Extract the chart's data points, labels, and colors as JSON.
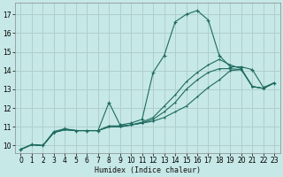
{
  "xlabel": "Humidex (Indice chaleur)",
  "bg_color": "#c6e8e6",
  "grid_color": "#aecfcd",
  "line_color": "#1e6b60",
  "xlim": [
    -0.5,
    23.5
  ],
  "ylim": [
    9.6,
    17.6
  ],
  "yticks": [
    10,
    11,
    12,
    13,
    14,
    15,
    16,
    17
  ],
  "xticks": [
    0,
    1,
    2,
    3,
    4,
    5,
    6,
    7,
    8,
    9,
    10,
    11,
    12,
    13,
    14,
    15,
    16,
    17,
    18,
    19,
    20,
    21,
    22,
    23
  ],
  "series1_x": [
    0,
    1,
    2,
    3,
    4,
    5,
    6,
    7,
    8,
    9,
    10,
    11,
    12,
    13,
    14,
    15,
    16,
    17,
    18,
    19,
    20,
    21,
    22,
    23
  ],
  "series1_y": [
    9.8,
    10.05,
    10.0,
    10.75,
    10.9,
    10.8,
    10.8,
    10.8,
    12.3,
    11.1,
    11.2,
    11.4,
    13.9,
    14.8,
    16.6,
    17.0,
    17.2,
    16.7,
    14.8,
    14.2,
    14.2,
    14.05,
    13.1,
    13.35
  ],
  "series2_x": [
    0,
    1,
    2,
    3,
    4,
    5,
    6,
    7,
    8,
    9,
    10,
    11,
    12,
    13,
    14,
    15,
    16,
    17,
    18,
    19,
    20,
    21,
    22,
    23
  ],
  "series2_y": [
    9.8,
    10.05,
    10.0,
    10.7,
    10.85,
    10.8,
    10.8,
    10.8,
    11.05,
    11.05,
    11.1,
    11.2,
    11.3,
    11.5,
    11.8,
    12.1,
    12.6,
    13.1,
    13.5,
    14.0,
    14.05,
    13.15,
    13.05,
    13.35
  ],
  "series3_x": [
    0,
    1,
    2,
    3,
    4,
    5,
    6,
    7,
    8,
    9,
    10,
    11,
    12,
    13,
    14,
    15,
    16,
    17,
    18,
    19,
    20,
    21,
    22,
    23
  ],
  "series3_y": [
    9.8,
    10.05,
    10.0,
    10.7,
    10.85,
    10.8,
    10.8,
    10.8,
    11.0,
    11.0,
    11.1,
    11.2,
    11.4,
    11.8,
    12.3,
    13.0,
    13.5,
    13.9,
    14.1,
    14.1,
    14.05,
    13.15,
    13.05,
    13.35
  ],
  "series4_x": [
    0,
    1,
    2,
    3,
    4,
    5,
    6,
    7,
    8,
    9,
    10,
    11,
    12,
    13,
    14,
    15,
    16,
    17,
    18,
    19,
    20,
    21,
    22,
    23
  ],
  "series4_y": [
    9.8,
    10.05,
    10.0,
    10.7,
    10.85,
    10.8,
    10.8,
    10.8,
    11.0,
    11.0,
    11.1,
    11.25,
    11.5,
    12.1,
    12.7,
    13.4,
    13.9,
    14.3,
    14.6,
    14.3,
    14.1,
    13.15,
    13.05,
    13.35
  ]
}
